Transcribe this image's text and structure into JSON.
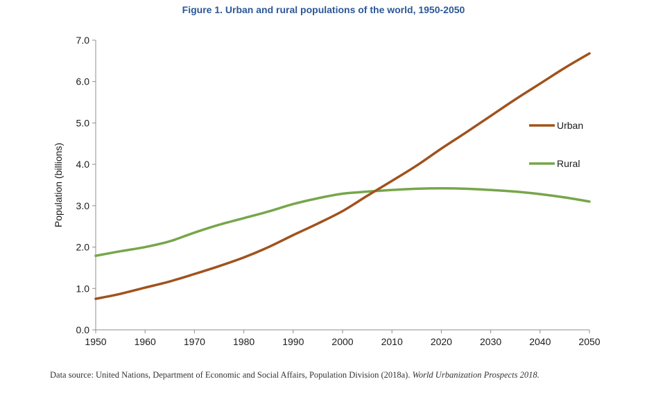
{
  "title": "Figure 1. Urban and rural populations of the world, 1950-2050",
  "source": {
    "text": "Data source: United Nations, Department of Economic and Social Affairs, Population Division (2018a). ",
    "italic": "World Urbanization Prospects 2018."
  },
  "chart_data": {
    "type": "line",
    "title": "Figure 1. Urban and rural populations of the world, 1950-2050",
    "xlabel": "",
    "ylabel": "Population (billions)",
    "xlim": [
      1950,
      2050
    ],
    "ylim": [
      0,
      7
    ],
    "xticks": [
      "1950",
      "1960",
      "1970",
      "1980",
      "1990",
      "2000",
      "2010",
      "2020",
      "2030",
      "2040",
      "2050"
    ],
    "yticks": [
      "0.0",
      "1.0",
      "2.0",
      "3.0",
      "4.0",
      "5.0",
      "6.0",
      "7.0"
    ],
    "grid": false,
    "legend": "right",
    "series": [
      {
        "name": "Urban",
        "color": "#a0521d",
        "x": [
          1950,
          1955,
          1960,
          1965,
          1970,
          1975,
          1980,
          1985,
          1990,
          1995,
          2000,
          2005,
          2010,
          2015,
          2020,
          2025,
          2030,
          2035,
          2040,
          2045,
          2050
        ],
        "values": [
          0.75,
          0.87,
          1.02,
          1.17,
          1.35,
          1.54,
          1.75,
          2.0,
          2.29,
          2.57,
          2.87,
          3.24,
          3.6,
          3.97,
          4.38,
          4.77,
          5.17,
          5.57,
          5.95,
          6.33,
          6.68
        ]
      },
      {
        "name": "Rural",
        "color": "#76a64a",
        "x": [
          1950,
          1955,
          1960,
          1965,
          1970,
          1975,
          1980,
          1985,
          1990,
          1995,
          2000,
          2005,
          2010,
          2015,
          2020,
          2025,
          2030,
          2035,
          2040,
          2045,
          2050
        ],
        "values": [
          1.79,
          1.9,
          2.0,
          2.14,
          2.35,
          2.54,
          2.7,
          2.86,
          3.04,
          3.18,
          3.29,
          3.34,
          3.38,
          3.41,
          3.42,
          3.41,
          3.38,
          3.34,
          3.28,
          3.2,
          3.1
        ]
      }
    ]
  }
}
